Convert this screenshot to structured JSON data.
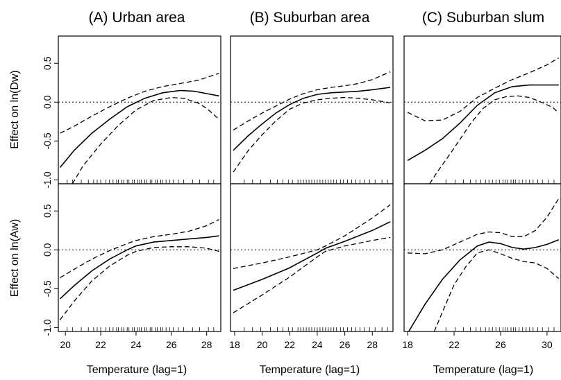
{
  "figure": {
    "column_titles": [
      "(A) Urban area",
      "(B) Suburban area",
      "(C) Suburban slum"
    ],
    "row_ylabels": [
      "Effect on ln(Dw)",
      "Effect on ln(Aw)"
    ],
    "xlabel": "Temperature (lag=1)"
  },
  "chart_data": [
    {
      "type": "line",
      "title": "(A) Urban area",
      "row": 0,
      "col": 0,
      "ylabel": "Effect on ln(Dw)",
      "xlabel": "",
      "xlim": [
        19.6,
        28.8
      ],
      "ylim": [
        -1.05,
        0.85
      ],
      "yticks": [
        -1.0,
        -0.5,
        0.0,
        0.5
      ],
      "ytick_labels": [
        "-1.0",
        "-0.5",
        "0.0",
        "0.5"
      ],
      "xticks": [],
      "xtick_labels": [],
      "series": [
        {
          "role": "fit",
          "x": [
            19.7,
            20.5,
            21.5,
            22.5,
            23.5,
            24.5,
            25.5,
            26.5,
            27.3,
            28.0,
            28.7
          ],
          "y": [
            -0.84,
            -0.62,
            -0.4,
            -0.22,
            -0.06,
            0.05,
            0.12,
            0.15,
            0.14,
            0.11,
            0.08
          ]
        },
        {
          "role": "upper",
          "x": [
            19.7,
            20.5,
            21.5,
            22.5,
            23.5,
            24.5,
            25.5,
            26.5,
            27.5,
            28.7
          ],
          "y": [
            -0.4,
            -0.31,
            -0.18,
            -0.06,
            0.05,
            0.14,
            0.2,
            0.24,
            0.28,
            0.37
          ]
        },
        {
          "role": "lower",
          "x": [
            20.4,
            21.0,
            22.0,
            23.0,
            24.0,
            25.0,
            26.0,
            26.7,
            27.5,
            28.0,
            28.7
          ],
          "y": [
            -1.05,
            -0.82,
            -0.54,
            -0.3,
            -0.1,
            0.02,
            0.06,
            0.05,
            -0.01,
            -0.08,
            -0.22
          ]
        }
      ],
      "zero_line": 0,
      "rug": [
        20.1,
        20.4,
        20.9,
        21.3,
        21.6,
        21.8,
        22.0,
        22.3,
        22.5,
        22.7,
        22.9,
        23.0,
        23.2,
        23.3,
        23.5,
        23.6,
        23.8,
        23.9,
        24.1,
        24.2,
        24.3,
        24.5,
        24.6,
        24.8,
        24.9,
        25.1,
        25.2,
        25.4,
        25.5,
        25.7,
        25.9,
        26.1,
        26.4,
        26.7,
        27.2,
        27.6,
        28.1,
        28.4
      ]
    },
    {
      "type": "line",
      "title": "(B) Suburban area",
      "row": 0,
      "col": 1,
      "ylabel": "",
      "xlabel": "",
      "xlim": [
        17.7,
        29.5
      ],
      "ylim": [
        -1.05,
        0.85
      ],
      "yticks": [],
      "ytick_labels": [],
      "xticks": [],
      "xtick_labels": [],
      "series": [
        {
          "role": "fit",
          "x": [
            17.9,
            19.0,
            20.0,
            21.0,
            22.0,
            23.0,
            24.0,
            25.0,
            26.0,
            27.0,
            28.0,
            29.3
          ],
          "y": [
            -0.62,
            -0.43,
            -0.28,
            -0.14,
            -0.03,
            0.05,
            0.1,
            0.12,
            0.13,
            0.14,
            0.16,
            0.19
          ]
        },
        {
          "role": "upper",
          "x": [
            17.9,
            19.0,
            20.0,
            21.0,
            22.0,
            23.0,
            24.0,
            25.0,
            26.0,
            27.0,
            28.0,
            29.3
          ],
          "y": [
            -0.36,
            -0.24,
            -0.14,
            -0.05,
            0.04,
            0.11,
            0.16,
            0.19,
            0.21,
            0.24,
            0.29,
            0.39
          ]
        },
        {
          "role": "lower",
          "x": [
            17.9,
            19.0,
            20.0,
            21.0,
            22.0,
            23.0,
            24.0,
            25.0,
            26.0,
            27.0,
            28.0,
            29.3
          ],
          "y": [
            -0.9,
            -0.62,
            -0.42,
            -0.24,
            -0.09,
            -0.01,
            0.03,
            0.05,
            0.06,
            0.05,
            0.03,
            -0.01
          ]
        }
      ],
      "zero_line": 0,
      "rug": [
        18.7,
        19.3,
        19.9,
        20.6,
        21.1,
        21.5,
        21.9,
        22.2,
        22.6,
        22.8,
        23.0,
        23.2,
        23.4,
        23.6,
        23.8,
        24.0,
        24.2,
        24.4,
        24.6,
        24.8,
        25.0,
        25.2,
        25.4,
        25.7,
        25.9,
        26.2,
        26.5,
        26.8,
        27.1,
        27.4,
        27.8,
        28.2,
        28.7,
        29.1
      ]
    },
    {
      "type": "line",
      "title": "(C) Suburban slum",
      "row": 0,
      "col": 2,
      "ylabel": "",
      "xlabel": "",
      "xlim": [
        17.7,
        31.2
      ],
      "ylim": [
        -1.05,
        0.85
      ],
      "yticks": [],
      "ytick_labels": [],
      "xticks": [],
      "xtick_labels": [],
      "series": [
        {
          "role": "fit",
          "x": [
            18.0,
            19.5,
            21.0,
            22.5,
            24.0,
            25.5,
            27.0,
            28.5,
            30.0,
            31.0
          ],
          "y": [
            -0.75,
            -0.62,
            -0.47,
            -0.27,
            -0.04,
            0.12,
            0.2,
            0.22,
            0.22,
            0.22
          ]
        },
        {
          "role": "upper",
          "x": [
            18.0,
            19.5,
            21.0,
            22.5,
            24.0,
            25.5,
            27.0,
            28.5,
            30.0,
            31.0
          ],
          "y": [
            -0.13,
            -0.24,
            -0.23,
            -0.12,
            0.06,
            0.18,
            0.29,
            0.38,
            0.48,
            0.57
          ]
        },
        {
          "role": "lower",
          "x": [
            19.9,
            20.5,
            21.5,
            22.5,
            23.5,
            24.5,
            25.5,
            26.5,
            27.5,
            28.5,
            29.5,
            30.5,
            31.0
          ],
          "y": [
            -1.05,
            -0.91,
            -0.7,
            -0.48,
            -0.26,
            -0.08,
            0.03,
            0.07,
            0.08,
            0.06,
            0.0,
            -0.07,
            -0.14
          ]
        }
      ],
      "zero_line": 0,
      "rug": [
        21.3,
        22.1,
        22.8,
        23.4,
        23.9,
        24.3,
        24.7,
        25.0,
        25.3,
        25.6,
        25.9,
        26.2,
        26.4,
        26.6,
        26.9,
        27.1,
        27.3,
        27.6,
        27.9,
        28.2,
        28.5,
        28.8,
        29.2,
        29.6,
        30.1,
        30.6
      ]
    },
    {
      "type": "line",
      "title": "",
      "row": 1,
      "col": 0,
      "ylabel": "Effect on ln(Aw)",
      "xlabel": "Temperature (lag=1)",
      "xlim": [
        19.6,
        28.8
      ],
      "ylim": [
        -1.05,
        0.85
      ],
      "yticks": [
        -1.0,
        -0.5,
        0.0,
        0.5
      ],
      "ytick_labels": [
        "-1.0",
        "-0.5",
        "0.0",
        "0.5"
      ],
      "xticks": [
        20,
        22,
        24,
        26,
        28
      ],
      "xtick_labels": [
        "20",
        "22",
        "24",
        "26",
        "28"
      ],
      "series": [
        {
          "role": "fit",
          "x": [
            19.7,
            20.5,
            21.5,
            22.5,
            23.5,
            24.0,
            25.0,
            26.0,
            27.0,
            28.0,
            28.7
          ],
          "y": [
            -0.63,
            -0.46,
            -0.27,
            -0.12,
            0.0,
            0.05,
            0.1,
            0.12,
            0.14,
            0.16,
            0.18
          ]
        },
        {
          "role": "upper",
          "x": [
            19.7,
            20.5,
            21.5,
            22.5,
            23.5,
            24.0,
            25.0,
            26.0,
            27.0,
            28.0,
            28.7
          ],
          "y": [
            -0.36,
            -0.25,
            -0.12,
            -0.01,
            0.08,
            0.12,
            0.17,
            0.2,
            0.24,
            0.31,
            0.39
          ]
        },
        {
          "role": "lower",
          "x": [
            19.7,
            20.5,
            21.5,
            22.5,
            23.5,
            24.0,
            25.0,
            26.0,
            27.0,
            28.0,
            28.7
          ],
          "y": [
            -0.9,
            -0.66,
            -0.4,
            -0.21,
            -0.07,
            -0.02,
            0.03,
            0.04,
            0.04,
            0.02,
            -0.02
          ]
        }
      ],
      "zero_line": 0,
      "rug": [
        20.1,
        20.4,
        20.9,
        21.3,
        21.6,
        21.8,
        22.0,
        22.3,
        22.5,
        22.7,
        22.9,
        23.0,
        23.2,
        23.3,
        23.5,
        23.6,
        23.8,
        23.9,
        24.1,
        24.2,
        24.3,
        24.5,
        24.6,
        24.8,
        24.9,
        25.1,
        25.2,
        25.4,
        25.5,
        25.7,
        25.9,
        26.1,
        26.4,
        26.7,
        27.2,
        27.6,
        28.1,
        28.4
      ]
    },
    {
      "type": "line",
      "title": "",
      "row": 1,
      "col": 1,
      "ylabel": "",
      "xlabel": "Temperature (lag=1)",
      "xlim": [
        17.7,
        29.5
      ],
      "ylim": [
        -1.05,
        0.85
      ],
      "yticks": [],
      "ytick_labels": [],
      "xticks": [
        18,
        20,
        22,
        24,
        26,
        28
      ],
      "xtick_labels": [
        "18",
        "20",
        "22",
        "24",
        "26",
        "28"
      ],
      "series": [
        {
          "role": "fit",
          "x": [
            17.9,
            20.0,
            22.0,
            24.0,
            24.6,
            26.0,
            28.0,
            29.3
          ],
          "y": [
            -0.52,
            -0.38,
            -0.23,
            -0.04,
            0.02,
            0.11,
            0.25,
            0.36
          ]
        },
        {
          "role": "upper",
          "x": [
            17.9,
            20.0,
            22.0,
            24.0,
            24.6,
            26.0,
            28.0,
            29.3
          ],
          "y": [
            -0.24,
            -0.17,
            -0.09,
            0.0,
            0.05,
            0.18,
            0.41,
            0.58
          ]
        },
        {
          "role": "lower",
          "x": [
            17.9,
            20.0,
            22.0,
            24.0,
            24.6,
            26.0,
            28.0,
            29.3
          ],
          "y": [
            -0.81,
            -0.58,
            -0.35,
            -0.09,
            -0.02,
            0.05,
            0.12,
            0.16
          ]
        }
      ],
      "zero_line": 0,
      "rug": [
        18.7,
        19.3,
        19.9,
        20.6,
        21.1,
        21.5,
        21.9,
        22.2,
        22.6,
        22.8,
        23.0,
        23.2,
        23.4,
        23.6,
        23.8,
        24.0,
        24.2,
        24.4,
        24.6,
        24.8,
        25.0,
        25.2,
        25.4,
        25.7,
        25.9,
        26.2,
        26.5,
        26.8,
        27.1,
        27.4,
        27.8,
        28.2,
        28.7,
        29.1
      ]
    },
    {
      "type": "line",
      "title": "",
      "row": 1,
      "col": 2,
      "ylabel": "",
      "xlabel": "Temperature (lag=1)",
      "xlim": [
        17.7,
        31.2
      ],
      "ylim": [
        -1.05,
        0.85
      ],
      "yticks": [],
      "ytick_labels": [],
      "xticks": [
        18,
        22,
        26,
        30
      ],
      "xtick_labels": [
        "18",
        "22",
        "26",
        "30"
      ],
      "series": [
        {
          "role": "fit",
          "x": [
            18.1,
            19.5,
            21.0,
            22.5,
            24.0,
            25.0,
            26.0,
            27.0,
            28.0,
            29.0,
            30.0,
            31.0
          ],
          "y": [
            -1.05,
            -0.7,
            -0.38,
            -0.13,
            0.05,
            0.1,
            0.08,
            0.03,
            0.01,
            0.03,
            0.07,
            0.13
          ]
        },
        {
          "role": "upper",
          "x": [
            18.0,
            19.5,
            21.0,
            22.5,
            24.0,
            25.0,
            26.0,
            27.0,
            28.0,
            29.0,
            30.0,
            31.0
          ],
          "y": [
            -0.04,
            -0.05,
            0.0,
            0.1,
            0.2,
            0.23,
            0.22,
            0.17,
            0.17,
            0.25,
            0.42,
            0.66
          ]
        },
        {
          "role": "lower",
          "x": [
            20.3,
            21.0,
            22.0,
            23.0,
            24.0,
            25.0,
            26.0,
            27.0,
            28.0,
            29.0,
            30.0,
            31.0
          ],
          "y": [
            -1.05,
            -0.8,
            -0.45,
            -0.22,
            -0.04,
            0.0,
            -0.05,
            -0.11,
            -0.15,
            -0.17,
            -0.24,
            -0.37
          ]
        }
      ],
      "zero_line": 0,
      "rug": [
        21.3,
        22.1,
        22.8,
        23.4,
        23.9,
        24.3,
        24.7,
        25.0,
        25.3,
        25.6,
        25.9,
        26.2,
        26.4,
        26.6,
        26.9,
        27.1,
        27.3,
        27.6,
        27.9,
        28.2,
        28.5,
        28.8,
        29.2,
        29.6,
        30.1,
        30.6
      ]
    }
  ]
}
